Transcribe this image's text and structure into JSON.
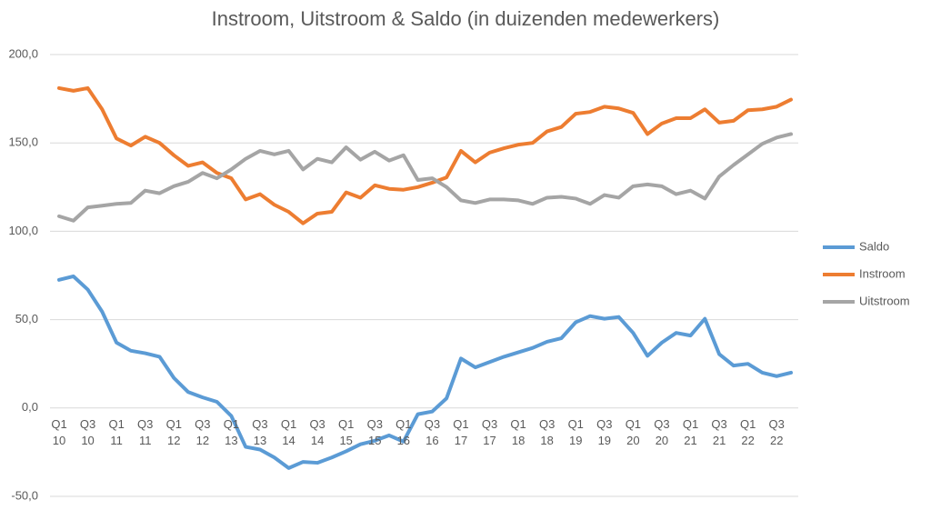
{
  "chart_data": {
    "type": "line",
    "title": "Instroom, Uitstroom & Saldo (in duizenden medewerkers)",
    "categories": [
      "Q1\n10",
      null,
      "Q3\n10",
      null,
      "Q1\n11",
      null,
      "Q3\n11",
      null,
      "Q1\n12",
      null,
      "Q3\n12",
      null,
      "Q1\n13",
      null,
      "Q3\n13",
      null,
      "Q1\n14",
      null,
      "Q3\n14",
      null,
      "Q1\n15",
      null,
      "Q3\n15",
      null,
      "Q1\n16",
      null,
      "Q3\n16",
      null,
      "Q1\n17",
      null,
      "Q3\n17",
      null,
      "Q1\n18",
      null,
      "Q3\n18",
      null,
      "Q1\n19",
      null,
      "Q3\n19",
      null,
      "Q1\n20",
      null,
      "Q3\n20",
      null,
      "Q1\n21",
      null,
      "Q3\n21",
      null,
      "Q1\n22",
      null,
      "Q3\n22",
      null
    ],
    "series": [
      {
        "name": "Saldo",
        "color": "#5b9bd5",
        "values": [
          72.5,
          74.5,
          67,
          54.5,
          37,
          32.4,
          31,
          29,
          17,
          9,
          6,
          3.5,
          -4.5,
          -22,
          -23.5,
          -28,
          -34,
          -30.5,
          -31,
          -28,
          -24.5,
          -20.5,
          -18.5,
          -15.5,
          -19,
          -3.5,
          -2,
          5.5,
          28,
          23,
          26,
          29,
          31.5,
          34,
          37.5,
          39.5,
          48.5,
          52,
          50.5,
          51.5,
          42.5,
          29.5,
          37,
          42.5,
          41,
          50.5,
          30.5,
          24,
          25,
          20,
          18,
          20
        ]
      },
      {
        "name": "Instroom",
        "color": "#ed7d31",
        "values": [
          181,
          179.5,
          181,
          169,
          152.5,
          148.5,
          153.5,
          150,
          143,
          137,
          139,
          133,
          130,
          118,
          121,
          115,
          111,
          104.5,
          110,
          111,
          122,
          119,
          126,
          124,
          123.5,
          125,
          127.5,
          130.5,
          145.5,
          139,
          144.5,
          147,
          149,
          150,
          156.5,
          159,
          166.5,
          167.5,
          170.5,
          169.5,
          167,
          155,
          161,
          164,
          164,
          169,
          161.5,
          162.5,
          168.5,
          169,
          170.5,
          174.5
        ]
      },
      {
        "name": "Uitstroom",
        "color": "#a5a5a5",
        "values": [
          108.5,
          106,
          113.5,
          114.5,
          115.5,
          116,
          123,
          121.5,
          125.5,
          128,
          133,
          130,
          135,
          141,
          145.5,
          143.5,
          145.5,
          135,
          141,
          139,
          147.5,
          140.5,
          145,
          140,
          143,
          129,
          130,
          125,
          117.5,
          116,
          118,
          118,
          117.5,
          115.5,
          119,
          119.5,
          118.5,
          115.5,
          120.5,
          119,
          125.5,
          126.5,
          125.5,
          121,
          123,
          118.5,
          131,
          137.5,
          143.5,
          149.5,
          153,
          155
        ]
      }
    ],
    "ylim": [
      -50,
      200
    ],
    "yticks": [
      {
        "value": -50,
        "label": "-50,0"
      },
      {
        "value": 0,
        "label": "0,0"
      },
      {
        "value": 50,
        "label": "50,0"
      },
      {
        "value": 100,
        "label": "100,0"
      },
      {
        "value": 150,
        "label": "150,0"
      },
      {
        "value": 200,
        "label": "200,0"
      }
    ],
    "grid": true,
    "legend": "right"
  }
}
